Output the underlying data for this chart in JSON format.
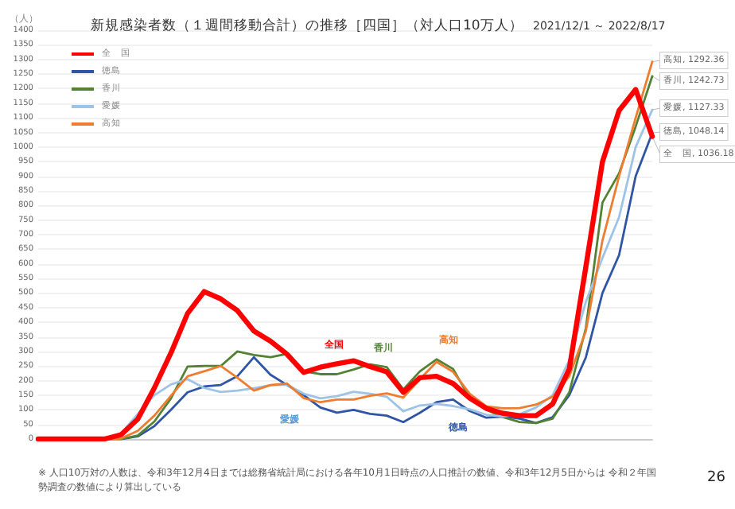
{
  "chart_data": {
    "type": "line",
    "title": "新規感染者数（１週間移動合計）の推移［四国］（対人口10万人）",
    "subtitle": "2021/12/1 ～ 2022/8/17",
    "ylabel": "（人）",
    "categories": [
      null,
      null,
      null,
      null,
      null,
      null,
      null,
      null,
      null,
      null,
      null,
      null,
      null,
      null,
      null,
      null,
      null,
      null,
      null,
      null,
      null,
      null,
      null,
      null,
      null,
      null,
      null,
      null,
      null,
      null,
      null,
      null,
      null,
      null,
      null,
      null,
      null,
      null
    ],
    "series": [
      {
        "name": "全　国",
        "color": "#ff0000",
        "values": [
          0,
          0,
          0,
          0,
          0,
          15,
          68,
          175,
          295,
          430,
          505,
          480,
          440,
          370,
          335,
          290,
          228,
          246,
          258,
          268,
          248,
          230,
          160,
          210,
          215,
          190,
          140,
          105,
          88,
          80,
          80,
          120,
          240,
          590,
          950,
          1125,
          1197,
          1036.18
        ]
      },
      {
        "name": "徳島",
        "color": "#2f55a4",
        "values": [
          null,
          null,
          null,
          null,
          0,
          0,
          9,
          44,
          100,
          160,
          180,
          185,
          215,
          280,
          220,
          185,
          150,
          108,
          90,
          100,
          86,
          80,
          58,
          90,
          126,
          135,
          96,
          73,
          77,
          70,
          55,
          75,
          150,
          280,
          500,
          630,
          900,
          1048.14
        ]
      },
      {
        "name": "香川",
        "color": "#548235",
        "values": [
          null,
          null,
          null,
          null,
          0,
          0,
          12,
          60,
          139,
          248,
          250,
          250,
          300,
          288,
          280,
          292,
          232,
          222,
          222,
          238,
          256,
          246,
          170,
          232,
          273,
          240,
          140,
          100,
          75,
          58,
          55,
          70,
          160,
          380,
          810,
          910,
          1070,
          1242.73
        ]
      },
      {
        "name": "愛媛",
        "color": "#9dc3e6",
        "values": [
          null,
          null,
          null,
          null,
          0,
          20,
          85,
          150,
          187,
          205,
          175,
          161,
          166,
          174,
          184,
          186,
          155,
          139,
          147,
          162,
          155,
          145,
          95,
          115,
          120,
          113,
          102,
          83,
          77,
          84,
          108,
          150,
          270,
          470,
          620,
          760,
          1000,
          1127.33
        ]
      },
      {
        "name": "高知",
        "color": "#ed7d31",
        "values": [
          null,
          null,
          null,
          null,
          0,
          2,
          28,
          80,
          148,
          215,
          232,
          250,
          210,
          166,
          185,
          190,
          140,
          126,
          135,
          135,
          148,
          156,
          142,
          205,
          264,
          230,
          155,
          112,
          105,
          106,
          118,
          145,
          215,
          370,
          680,
          900,
          1100,
          1292.36
        ]
      }
    ],
    "ylim": [
      0,
      1400
    ],
    "yticks": [
      0,
      50,
      100,
      150,
      200,
      250,
      300,
      350,
      400,
      450,
      500,
      550,
      600,
      650,
      700,
      750,
      800,
      850,
      900,
      950,
      1000,
      1050,
      1100,
      1150,
      1200,
      1250,
      1300,
      1350,
      1400
    ],
    "tick_labels": "y",
    "grid": "y",
    "legend": "top left",
    "marker": "none",
    "line_style": "solid",
    "annotations": [
      "高知, 1292.36",
      "香川, 1242.73",
      "愛媛, 1127.33",
      "全　国, 1036.18",
      "徳島, 1048.14",
      "全国",
      "香川",
      "高知",
      "愛媛",
      "徳島",
      "※ 人口10万対の人数は、令和3年12月4日までは総務省統計局における各年10月1日時点の人口推計の数値、令和3年12月5日からは 令和２年国勢調査の数値により算出している",
      "26"
    ]
  }
}
